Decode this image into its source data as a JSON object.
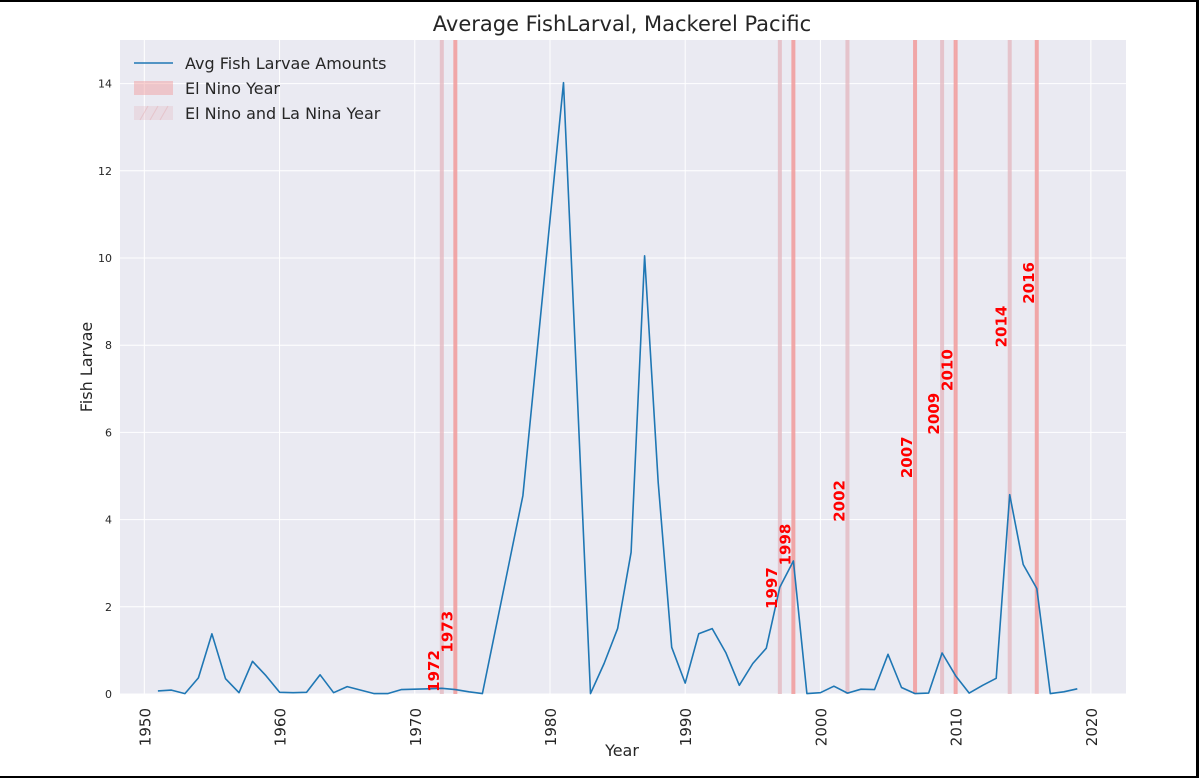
{
  "chart_data": {
    "type": "line",
    "title": "Average FishLarval, Mackerel Pacific",
    "xlabel": "Year",
    "ylabel": "Fish Larvae",
    "xlim": [
      1948.2,
      1922.6
    ],
    "ylim": [
      0,
      15
    ],
    "x_ticks": [
      "1950",
      "1960",
      "1970",
      "1980",
      "1990",
      "2000",
      "2010",
      "2020"
    ],
    "y_ticks": [
      "0",
      "2",
      "4",
      "6",
      "8",
      "10",
      "12",
      "14"
    ],
    "grid": true,
    "legend_position": "top-left",
    "legend": [
      {
        "label": "Avg Fish Larvae Amounts",
        "kind": "line",
        "color": "#1f77b4"
      },
      {
        "label": "El Nino Year",
        "kind": "patch",
        "color": "#e8a9b0"
      },
      {
        "label": "El Nino and La Nina Year",
        "kind": "hatched-patch",
        "color": "#e8c8cf"
      }
    ],
    "series": [
      {
        "name": "Avg Fish Larvae Amounts",
        "color": "#1f77b4",
        "x": [
          1951,
          1952,
          1953,
          1954,
          1955,
          1956,
          1957,
          1958,
          1959,
          1960,
          1961,
          1962,
          1963,
          1964,
          1965,
          1966,
          1967,
          1968,
          1969,
          1970,
          1971,
          1972,
          1973,
          1974,
          1975,
          1978,
          1981,
          1983,
          1984,
          1985,
          1986,
          1987,
          1988,
          1989,
          1990,
          1991,
          1992,
          1993,
          1994,
          1995,
          1996,
          1997,
          1998,
          1999,
          2000,
          2001,
          2002,
          2003,
          2004,
          2005,
          2006,
          2007,
          2008,
          2009,
          2010,
          2011,
          2012,
          2013,
          2014,
          2015,
          2016,
          2017,
          2018,
          2019
        ],
        "y": [
          0.07,
          0.09,
          0.01,
          0.37,
          1.38,
          0.35,
          0.03,
          0.75,
          0.42,
          0.04,
          0.03,
          0.04,
          0.44,
          0.03,
          0.17,
          0.09,
          0.01,
          0.01,
          0.1,
          0.11,
          0.12,
          0.13,
          0.1,
          0.05,
          0.01,
          4.55,
          14.02,
          0.01,
          0.7,
          1.5,
          3.25,
          10.05,
          4.85,
          1.07,
          0.25,
          1.38,
          1.5,
          0.95,
          0.2,
          0.7,
          1.05,
          2.45,
          3.05,
          0.01,
          0.03,
          0.18,
          0.02,
          0.11,
          0.1,
          0.91,
          0.15,
          0.01,
          0.02,
          0.94,
          0.42,
          0.02,
          0.2,
          0.36,
          4.57,
          2.97,
          2.42,
          0.01,
          0.05,
          0.12
        ]
      }
    ],
    "event_lines": [
      {
        "year": 1972,
        "label": "1972",
        "kind": "El Nino and La Nina Year",
        "label_y": 0.05
      },
      {
        "year": 1973,
        "label": "1973",
        "kind": "El Nino Year",
        "label_y": 0.95
      },
      {
        "year": 1997,
        "label": "1997",
        "kind": "El Nino and La Nina Year",
        "label_y": 1.95
      },
      {
        "year": 1998,
        "label": "1998",
        "kind": "El Nino Year",
        "label_y": 2.95
      },
      {
        "year": 2002,
        "label": "2002",
        "kind": "El Nino and La Nina Year",
        "label_y": 3.95
      },
      {
        "year": 2007,
        "label": "2007",
        "kind": "El Nino Year",
        "label_y": 4.95
      },
      {
        "year": 2009,
        "label": "2009",
        "kind": "El Nino and La Nina Year",
        "label_y": 5.95
      },
      {
        "year": 2010,
        "label": "2010",
        "kind": "El Nino Year",
        "label_y": 6.95
      },
      {
        "year": 2014,
        "label": "2014",
        "kind": "El Nino and La Nina Year",
        "label_y": 7.95
      },
      {
        "year": 2016,
        "label": "2016",
        "kind": "El Nino Year",
        "label_y": 8.95
      }
    ],
    "colors": {
      "background": "#eaeaf2",
      "grid": "#ffffff",
      "line": "#1f77b4",
      "el_nino": "#f19a9a",
      "both": "#e3b5bd",
      "label": "#ff0000"
    }
  }
}
